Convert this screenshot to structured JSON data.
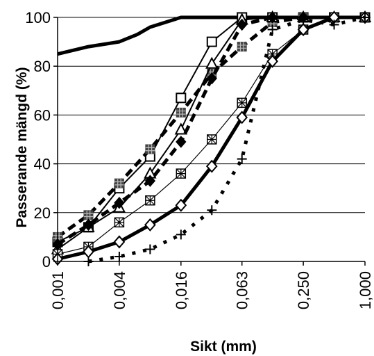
{
  "chart_data": {
    "type": "line",
    "xlabel": "Sikt (mm)",
    "ylabel": "Passerande mängd (%)",
    "x_tick_labels": [
      "0,001",
      "0,004",
      "0,016",
      "0,063",
      "0,250",
      "1,000"
    ],
    "y_tick_labels": [
      "0",
      "20",
      "40",
      "60",
      "80",
      "100"
    ],
    "xlim": [
      0.001,
      1.0
    ],
    "x_scale": "log",
    "ylim": [
      0,
      100
    ],
    "grid": "horizontal",
    "legend": "none",
    "series": [
      {
        "marker": "none",
        "line": "solid-thick",
        "x": [
          0.001,
          0.002,
          0.004,
          0.006,
          0.008,
          0.016,
          0.032,
          0.063,
          0.125,
          0.25,
          0.5,
          1.0
        ],
        "y": [
          85,
          88,
          90,
          93,
          96,
          100,
          100,
          100,
          100,
          100,
          100,
          100
        ]
      },
      {
        "marker": "square-open",
        "line": "solid",
        "x": [
          0.001,
          0.002,
          0.004,
          0.008,
          0.016,
          0.032,
          0.063,
          0.125,
          0.25,
          0.5,
          1.0
        ],
        "y": [
          8,
          14,
          30,
          43,
          67,
          90,
          100,
          100,
          100,
          100,
          100
        ]
      },
      {
        "marker": "hash-filled",
        "line": "dashed-thick",
        "x": [
          0.001,
          0.002,
          0.004,
          0.008,
          0.016,
          0.032,
          0.063,
          0.125,
          0.25,
          0.5,
          1.0
        ],
        "y": [
          10,
          19,
          32,
          46,
          61,
          77,
          88,
          98,
          100,
          100,
          100
        ]
      },
      {
        "marker": "triangle-open",
        "line": "solid",
        "x": [
          0.001,
          0.002,
          0.004,
          0.008,
          0.016,
          0.032,
          0.063,
          0.125,
          0.25,
          0.5,
          1.0
        ],
        "y": [
          5,
          14,
          22,
          36,
          54,
          81,
          99,
          100,
          100,
          100,
          100
        ]
      },
      {
        "marker": "diamond-filled",
        "line": "dashed-thick",
        "x": [
          0.001,
          0.002,
          0.004,
          0.008,
          0.016,
          0.032,
          0.063,
          0.125,
          0.25,
          0.5,
          1.0
        ],
        "y": [
          7,
          15,
          24,
          33,
          49,
          75,
          97,
          100,
          100,
          100,
          100
        ]
      },
      {
        "marker": "hash-open",
        "line": "solid-thin",
        "x": [
          0.001,
          0.002,
          0.004,
          0.008,
          0.016,
          0.032,
          0.063,
          0.125,
          0.25,
          0.5,
          1.0
        ],
        "y": [
          3,
          6,
          16,
          25,
          36,
          50,
          65,
          85,
          95,
          100,
          100
        ]
      },
      {
        "marker": "diamond-open",
        "line": "solid-thick",
        "x": [
          0.001,
          0.002,
          0.004,
          0.008,
          0.016,
          0.032,
          0.063,
          0.125,
          0.25,
          0.5,
          1.0
        ],
        "y": [
          1,
          4,
          8,
          15,
          23,
          39,
          59,
          82,
          95,
          100,
          100
        ]
      },
      {
        "marker": "plus",
        "line": "dotted-thick",
        "x": [
          0.002,
          0.004,
          0.008,
          0.016,
          0.032,
          0.063,
          0.125,
          0.25,
          0.5,
          1.0
        ],
        "y": [
          0,
          2,
          5,
          11,
          21,
          42,
          95,
          99,
          97,
          100
        ]
      }
    ]
  }
}
